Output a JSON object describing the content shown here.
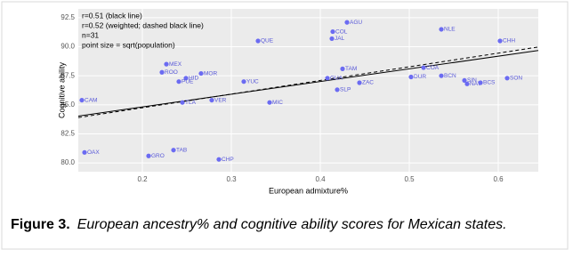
{
  "chart_data": {
    "type": "scatter",
    "annotations": [
      "r=0.51 (black line)",
      "r=0.52 (weighted; dashed black line)",
      "n=31",
      "point size = sqrt(population)"
    ],
    "xlabel": "European admixture%",
    "ylabel": "Cognitive ability",
    "point_labels": [
      "AGU",
      "NLE",
      "COL",
      "JAL",
      "QUE",
      "CHH",
      "MEX",
      "ROO",
      "MOR",
      "HID",
      "PUE",
      "YUC",
      "TAM",
      "COA",
      "BCN",
      "DUR",
      "GUA",
      "ZAC",
      "SLP",
      "SON",
      "SIN",
      "NAY",
      "BCS",
      "CAM",
      "TLA",
      "VER",
      "MIC",
      "OAX",
      "GRO",
      "TAB",
      "CHP"
    ],
    "x": [
      0.43,
      0.536,
      0.414,
      0.413,
      0.33,
      0.602,
      0.227,
      0.222,
      0.266,
      0.249,
      0.241,
      0.314,
      0.425,
      0.516,
      0.536,
      0.502,
      0.408,
      0.444,
      0.419,
      0.61,
      0.562,
      0.565,
      0.58,
      0.132,
      0.245,
      0.278,
      0.343,
      0.135,
      0.207,
      0.235,
      0.286
    ],
    "y": [
      92.1,
      91.5,
      91.3,
      90.7,
      90.5,
      90.5,
      88.5,
      87.8,
      87.7,
      87.3,
      87.0,
      87.0,
      88.1,
      88.2,
      87.5,
      87.4,
      87.3,
      86.9,
      86.3,
      87.3,
      87.1,
      86.8,
      86.9,
      85.4,
      85.2,
      85.4,
      85.2,
      80.9,
      80.6,
      81.1,
      80.3
    ],
    "color": "#6b6bf2",
    "fit_lines": [
      {
        "x": [
          0.128,
          0.645
        ],
        "y": [
          84.03,
          89.68
        ],
        "dashed": false,
        "color": "#000000"
      },
      {
        "x": [
          0.128,
          0.645
        ],
        "y": [
          83.9,
          89.98
        ],
        "dashed": true,
        "color": "#000000"
      }
    ],
    "xlim": [
      0.128,
      0.645
    ],
    "ylim": [
      79.24,
      93.26
    ],
    "xticks": [
      0.2,
      0.3,
      0.4,
      0.5,
      0.6
    ],
    "yticks": [
      {
        "value": 80,
        "label": "80.0"
      },
      82.5,
      {
        "value": 85,
        "label": "85.0"
      },
      87.5,
      {
        "value": 90,
        "label": "90.0"
      },
      92.5
    ],
    "grid": true
  },
  "caption": {
    "label": "Figure 3.",
    "text": "European ancestry% and cognitive ability scores for Mexican states."
  }
}
